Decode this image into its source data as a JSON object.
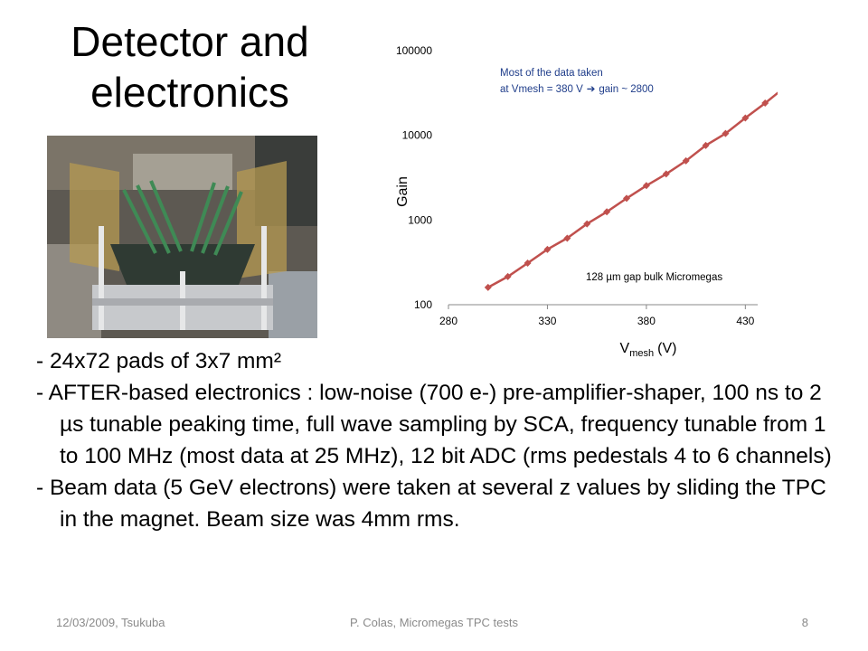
{
  "slide": {
    "title_line1": "Detector and",
    "title_line2": "electronics",
    "bullets": [
      "- 24x72 pads of 3x7 mm²",
      "- AFTER-based electronics : low-noise (700 e-) pre-amplifier-shaper, 100 ns to 2 µs tunable peaking time, full wave sampling by SCA, frequency tunable from 1 to 100 MHz (most data at 25 MHz), 12 bit ADC (rms pedestals 4 to 6 channels)",
      "- Beam data (5 GeV electrons) were taken at several z values by sliding the TPC in the magnet. Beam size was 4mm rms."
    ],
    "footer": {
      "left": "12/03/2009, Tsukuba",
      "center": "P. Colas, Micromegas TPC tests",
      "right": "8"
    }
  },
  "chart_data": {
    "type": "line",
    "xlabel_main": "V",
    "xlabel_sub": "mesh",
    "xlabel_unit": "(V)",
    "ylabel": "Gain",
    "yscale": "log",
    "xlim": [
      280,
      460
    ],
    "ylim": [
      100,
      100000
    ],
    "x_ticks": [
      "280",
      "330",
      "380",
      "430"
    ],
    "y_ticks": [
      "100",
      "1000",
      "10000",
      "100000"
    ],
    "annotation_top_line1": "Most of the data taken",
    "annotation_top_line2": "at Vmesh = 380 V",
    "annotation_top_line2b": "gain ~ 2800",
    "annotation_bottom": "128 µm gap bulk Micromegas",
    "line_color": "#c0504d",
    "annotation_color": "#1f3d8a",
    "x": [
      300,
      310,
      320,
      330,
      340,
      350,
      360,
      370,
      380,
      390,
      400,
      410,
      420,
      430,
      440,
      450,
      455
    ],
    "y": [
      160,
      215,
      310,
      450,
      610,
      900,
      1250,
      1800,
      2550,
      3500,
      5000,
      7600,
      10500,
      16000,
      24000,
      37000,
      47000
    ]
  }
}
